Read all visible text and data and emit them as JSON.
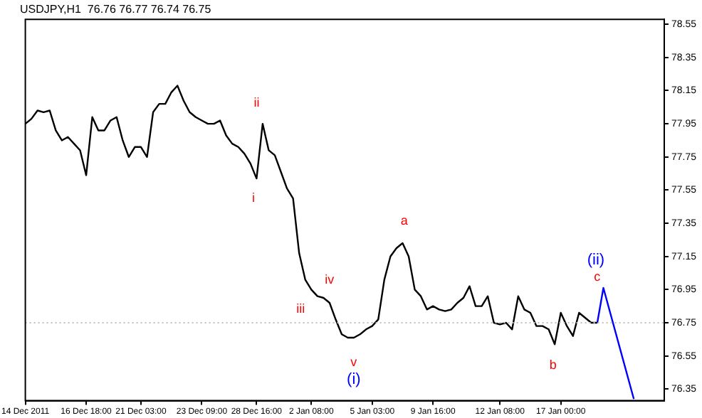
{
  "chart_data": {
    "type": "line",
    "title": "USDJPY,H1  76.76 76.77 76.74 76.75",
    "categories": [
      "14 Dec 2011",
      null,
      null,
      null,
      null,
      null,
      null,
      null,
      null,
      null,
      "16 Dec 18:00",
      null,
      null,
      null,
      null,
      null,
      null,
      null,
      null,
      "21 Dec 03:00",
      null,
      null,
      null,
      null,
      null,
      null,
      null,
      null,
      null,
      "23 Dec 09:00",
      null,
      null,
      null,
      null,
      null,
      null,
      null,
      null,
      "28 Dec 16:00",
      null,
      null,
      null,
      null,
      null,
      null,
      null,
      null,
      "2 Jan 08:00",
      null,
      null,
      null,
      null,
      null,
      null,
      null,
      null,
      null,
      "5 Jan 03:00",
      null,
      null,
      null,
      null,
      null,
      null,
      null,
      null,
      null,
      "9 Jan 16:00",
      null,
      null,
      null,
      null,
      null,
      null,
      null,
      null,
      null,
      null,
      "12 Jan 08:00",
      null,
      null,
      null,
      null,
      null,
      null,
      null,
      null,
      null,
      "17 Jan 00:00",
      null,
      null,
      null,
      null,
      null,
      null,
      null,
      null,
      null,
      null,
      null,
      null,
      null,
      null,
      null,
      null,
      null
    ],
    "series": [
      {
        "color": "#000000",
        "values": [
          77.95,
          77.98,
          78.03,
          78.02,
          78.03,
          77.91,
          77.85,
          77.87,
          77.83,
          77.79,
          77.64,
          77.99,
          77.91,
          77.91,
          77.97,
          77.99,
          77.85,
          77.75,
          77.81,
          77.81,
          77.75,
          78.02,
          78.07,
          78.07,
          78.14,
          78.18,
          78.09,
          78.02,
          77.99,
          77.97,
          77.95,
          77.95,
          77.97,
          77.88,
          77.83,
          77.81,
          77.77,
          77.71,
          77.62,
          77.95,
          77.79,
          77.76,
          77.66,
          77.56,
          77.5,
          77.17,
          77.01,
          76.95,
          76.91,
          76.9,
          76.87,
          76.77,
          76.68,
          76.66,
          76.66,
          76.68,
          76.71,
          76.73,
          76.77,
          77.01,
          77.15,
          77.2,
          77.23,
          77.15,
          76.95,
          76.91,
          76.83,
          76.85,
          76.83,
          76.82,
          76.83,
          76.87,
          76.9,
          76.97,
          76.85,
          76.85,
          76.91,
          76.75,
          76.74,
          76.75,
          76.71,
          76.91,
          76.83,
          76.81,
          76.73,
          76.73,
          76.71,
          76.62,
          76.81,
          76.73,
          76.67,
          76.81,
          76.78,
          76.75,
          76.75,
          null,
          null,
          null,
          null,
          null,
          null,
          null,
          null,
          null,
          null,
          null
        ]
      },
      {
        "color": "#0000ff",
        "values": [
          null,
          null,
          null,
          null,
          null,
          null,
          null,
          null,
          null,
          null,
          null,
          null,
          null,
          null,
          null,
          null,
          null,
          null,
          null,
          null,
          null,
          null,
          null,
          null,
          null,
          null,
          null,
          null,
          null,
          null,
          null,
          null,
          null,
          null,
          null,
          null,
          null,
          null,
          null,
          null,
          null,
          null,
          null,
          null,
          null,
          null,
          null,
          null,
          null,
          null,
          null,
          null,
          null,
          null,
          null,
          null,
          null,
          null,
          null,
          null,
          null,
          null,
          null,
          null,
          null,
          null,
          null,
          null,
          null,
          null,
          null,
          null,
          null,
          null,
          null,
          null,
          null,
          null,
          null,
          null,
          null,
          null,
          null,
          null,
          null,
          null,
          null,
          null,
          null,
          null,
          null,
          null,
          null,
          null,
          76.75,
          76.96,
          null,
          null,
          null,
          null,
          76.29,
          null,
          null,
          null,
          null,
          null
        ]
      }
    ],
    "ylim": [
      76.28,
      78.58
    ],
    "yticks": [
      76.35,
      76.55,
      76.75,
      76.95,
      77.15,
      77.35,
      77.55,
      77.75,
      77.95,
      78.15,
      78.35,
      78.55
    ],
    "ref_lines": [
      {
        "axis": "y",
        "value": 76.75,
        "color": "#c0c0c0",
        "line_style": "dotted"
      }
    ],
    "annotations": [
      "i",
      "ii",
      "iii",
      "iv",
      "v",
      "(i)",
      "a",
      "b",
      "c",
      "(ii)"
    ],
    "grid": false,
    "legend": false,
    "marker": "none",
    "line_style": "solid"
  }
}
